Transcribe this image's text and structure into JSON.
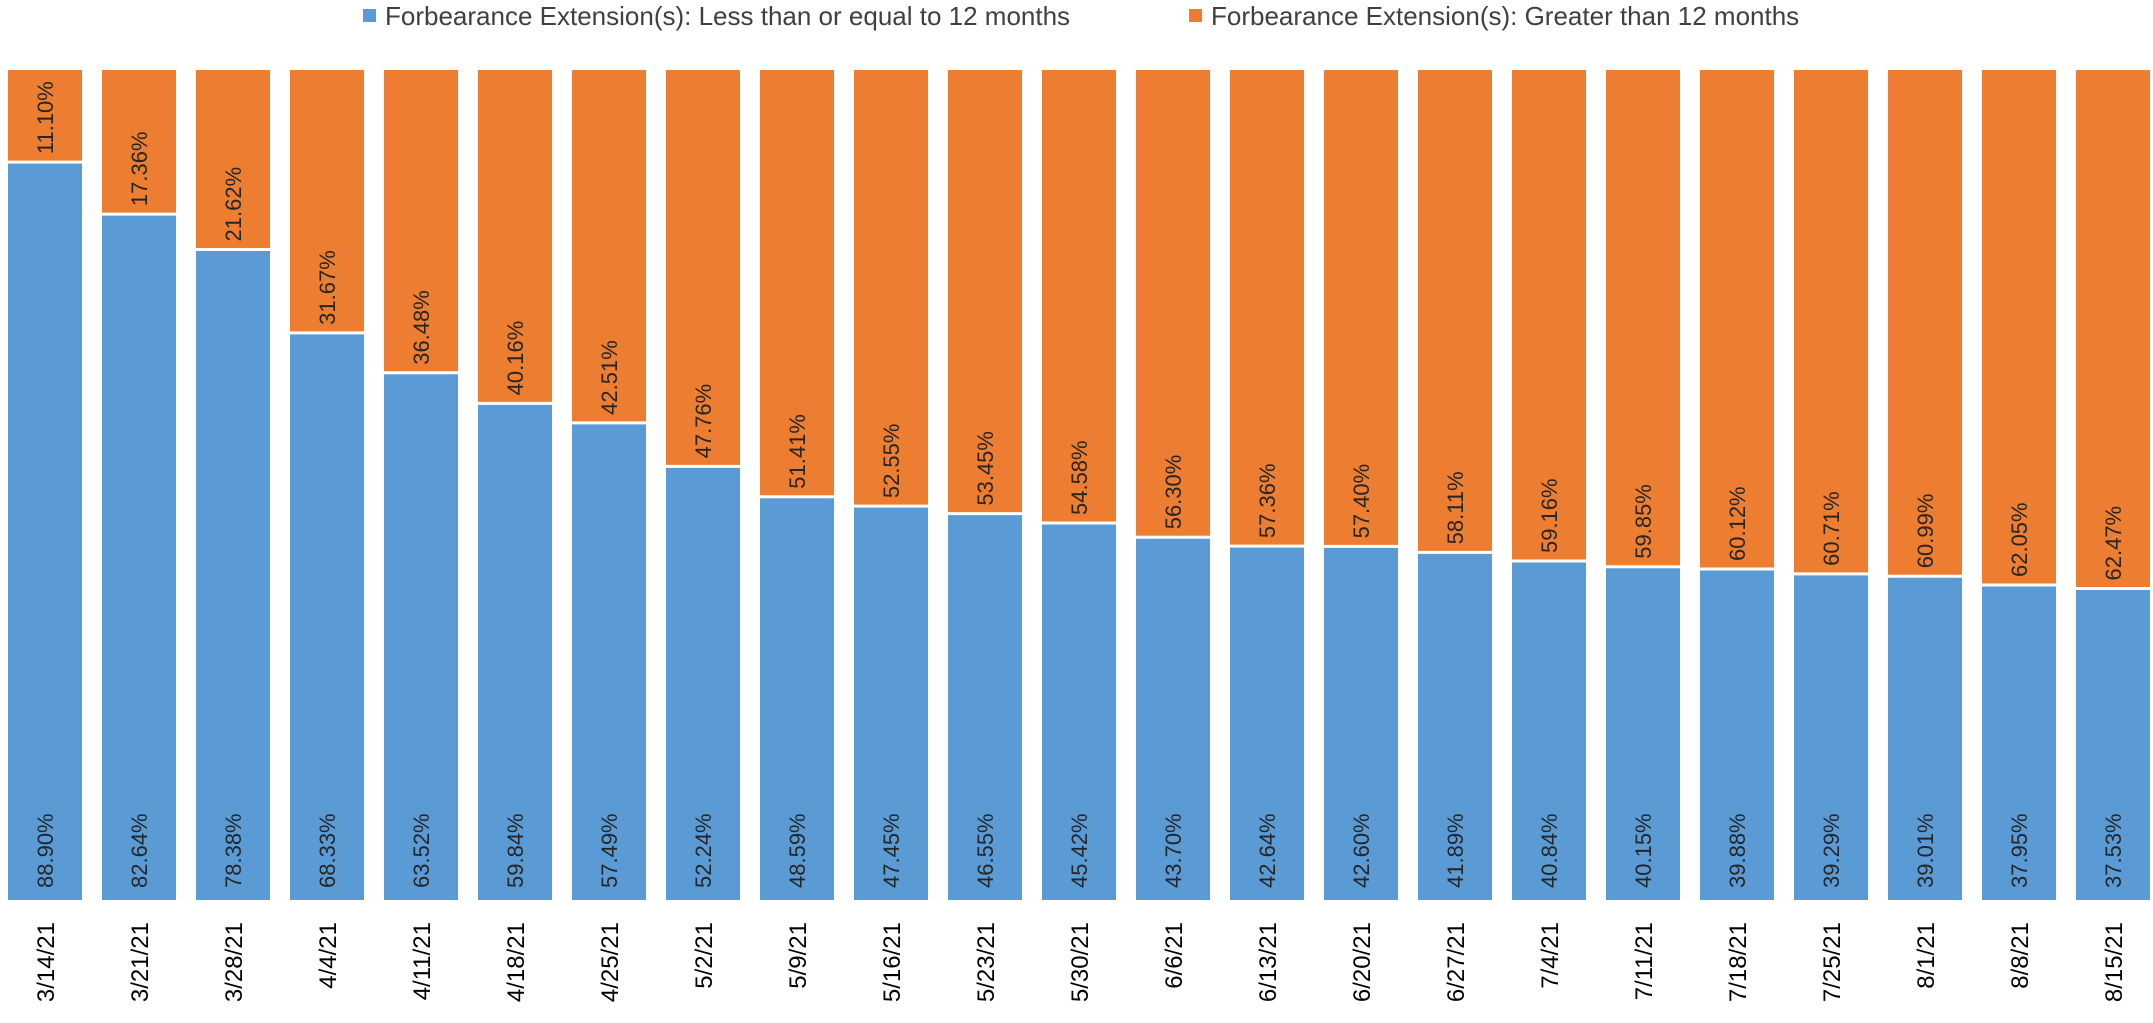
{
  "chart_data": {
    "type": "bar",
    "stacked": true,
    "orientation": "vertical",
    "title": "",
    "xlabel": "",
    "ylabel": "",
    "ylim": [
      0,
      100
    ],
    "grid": false,
    "legend_position": "top",
    "categories": [
      "3/14/21",
      "3/21/21",
      "3/28/21",
      "4/4/21",
      "4/11/21",
      "4/18/21",
      "4/25/21",
      "5/2/21",
      "5/9/21",
      "5/16/21",
      "5/23/21",
      "5/30/21",
      "6/6/21",
      "6/13/21",
      "6/20/21",
      "6/27/21",
      "7/4/21",
      "7/11/21",
      "7/18/21",
      "7/25/21",
      "8/1/21",
      "8/8/21",
      "8/15/21"
    ],
    "series": [
      {
        "name": "Forbearance Extension(s): Less than or equal to 12 months",
        "color": "#5B9BD5",
        "values": [
          88.9,
          82.64,
          78.38,
          68.33,
          63.52,
          59.84,
          57.49,
          52.24,
          48.59,
          47.45,
          46.55,
          45.42,
          43.7,
          42.64,
          42.6,
          41.89,
          40.84,
          40.15,
          39.88,
          39.29,
          39.01,
          37.95,
          37.53
        ],
        "labels": [
          "88.90%",
          "82.64%",
          "78.38%",
          "68.33%",
          "63.52%",
          "59.84%",
          "57.49%",
          "52.24%",
          "48.59%",
          "47.45%",
          "46.55%",
          "45.42%",
          "43.70%",
          "42.64%",
          "42.60%",
          "41.89%",
          "40.84%",
          "40.15%",
          "39.88%",
          "39.29%",
          "39.01%",
          "37.95%",
          "37.53%"
        ]
      },
      {
        "name": "Forbearance Extension(s): Greater than 12 months",
        "color": "#ED7D31",
        "values": [
          11.1,
          17.36,
          21.62,
          31.67,
          36.48,
          40.16,
          42.51,
          47.76,
          51.41,
          52.55,
          53.45,
          54.58,
          56.3,
          57.36,
          57.4,
          58.11,
          59.16,
          59.85,
          60.12,
          60.71,
          60.99,
          62.05,
          62.47
        ],
        "labels": [
          "11.10%",
          "17.36%",
          "21.62%",
          "31.67%",
          "36.48%",
          "40.16%",
          "42.51%",
          "47.76%",
          "51.41%",
          "52.55%",
          "53.45%",
          "54.58%",
          "56.30%",
          "57.36%",
          "57.40%",
          "58.11%",
          "59.16%",
          "59.85%",
          "60.12%",
          "60.71%",
          "60.99%",
          "62.05%",
          "62.47%"
        ]
      }
    ]
  }
}
